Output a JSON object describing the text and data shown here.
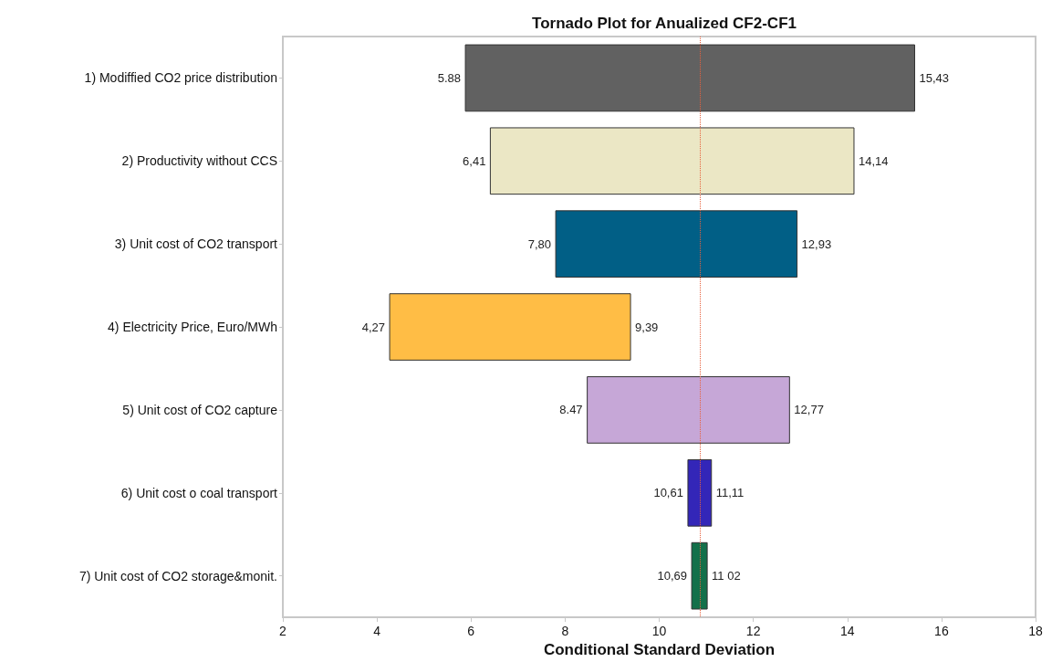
{
  "chart_data": {
    "type": "bar",
    "orientation": "horizontal",
    "title": "Tornado Plot for Anualized CF2-CF1",
    "xlabel": "Conditional Standard Deviation",
    "categories": [
      "1) Modiffied CO2 price distribution",
      "2) Productivity without CCS",
      "3) Unit cost of CO2 transport",
      "4) Electricity Price, Euro/MWh",
      "5) Unit cost of CO2 capture",
      "6) Unit cost o coal transport",
      "7) Unit cost of CO2 storage&monit."
    ],
    "base": [
      5.88,
      6.41,
      7.8,
      4.27,
      8.47,
      10.61,
      10.69
    ],
    "values": [
      9.55,
      7.73,
      5.13,
      5.12,
      4.3,
      0.5,
      0.33
    ],
    "colors": [
      "#616161",
      "#ebe7c5",
      "#015f86",
      "#ffbd45",
      "#c6a7d7",
      "#3326b8",
      "#13704a"
    ],
    "xlim": [
      2,
      18
    ],
    "xticks": [
      2,
      4,
      6,
      8,
      10,
      12,
      14,
      16,
      18
    ],
    "ref_lines": [
      {
        "axis": "x",
        "value": 10.86,
        "color": "#e8603c",
        "line_style": "dotted"
      }
    ],
    "annotations": [
      {
        "text": "5.88",
        "x": 5.88,
        "y": "1) Modiffied CO2 price distribution"
      },
      {
        "text": "15,43",
        "x": 15.43,
        "y": "1) Modiffied CO2 price distribution"
      },
      {
        "text": "6,41",
        "x": 6.41,
        "y": "2) Productivity without CCS"
      },
      {
        "text": "14,14",
        "x": 14.14,
        "y": "2) Productivity without CCS"
      },
      {
        "text": "7,80",
        "x": 7.8,
        "y": "3) Unit cost of CO2 transport"
      },
      {
        "text": "12,93",
        "x": 12.93,
        "y": "3) Unit cost of CO2 transport"
      },
      {
        "text": "4,27",
        "x": 4.27,
        "y": "4) Electricity Price, Euro/MWh"
      },
      {
        "text": "9,39",
        "x": 9.39,
        "y": "4) Electricity Price, Euro/MWh"
      },
      {
        "text": "8.47",
        "x": 8.47,
        "y": "5) Unit cost of CO2 capture"
      },
      {
        "text": "12,77",
        "x": 12.77,
        "y": "5) Unit cost of CO2 capture"
      },
      {
        "text": "10,61",
        "x": 10.61,
        "y": "6) Unit cost o coal transport"
      },
      {
        "text": "11,11",
        "x": 11.11,
        "y": "6) Unit cost o coal transport"
      },
      {
        "text": "10,69",
        "x": 10.69,
        "y": "7) Unit cost of CO2 storage&monit."
      },
      {
        "text": "11 02",
        "x": 11.02,
        "y": "7) Unit cost of CO2 storage&monit."
      }
    ]
  }
}
